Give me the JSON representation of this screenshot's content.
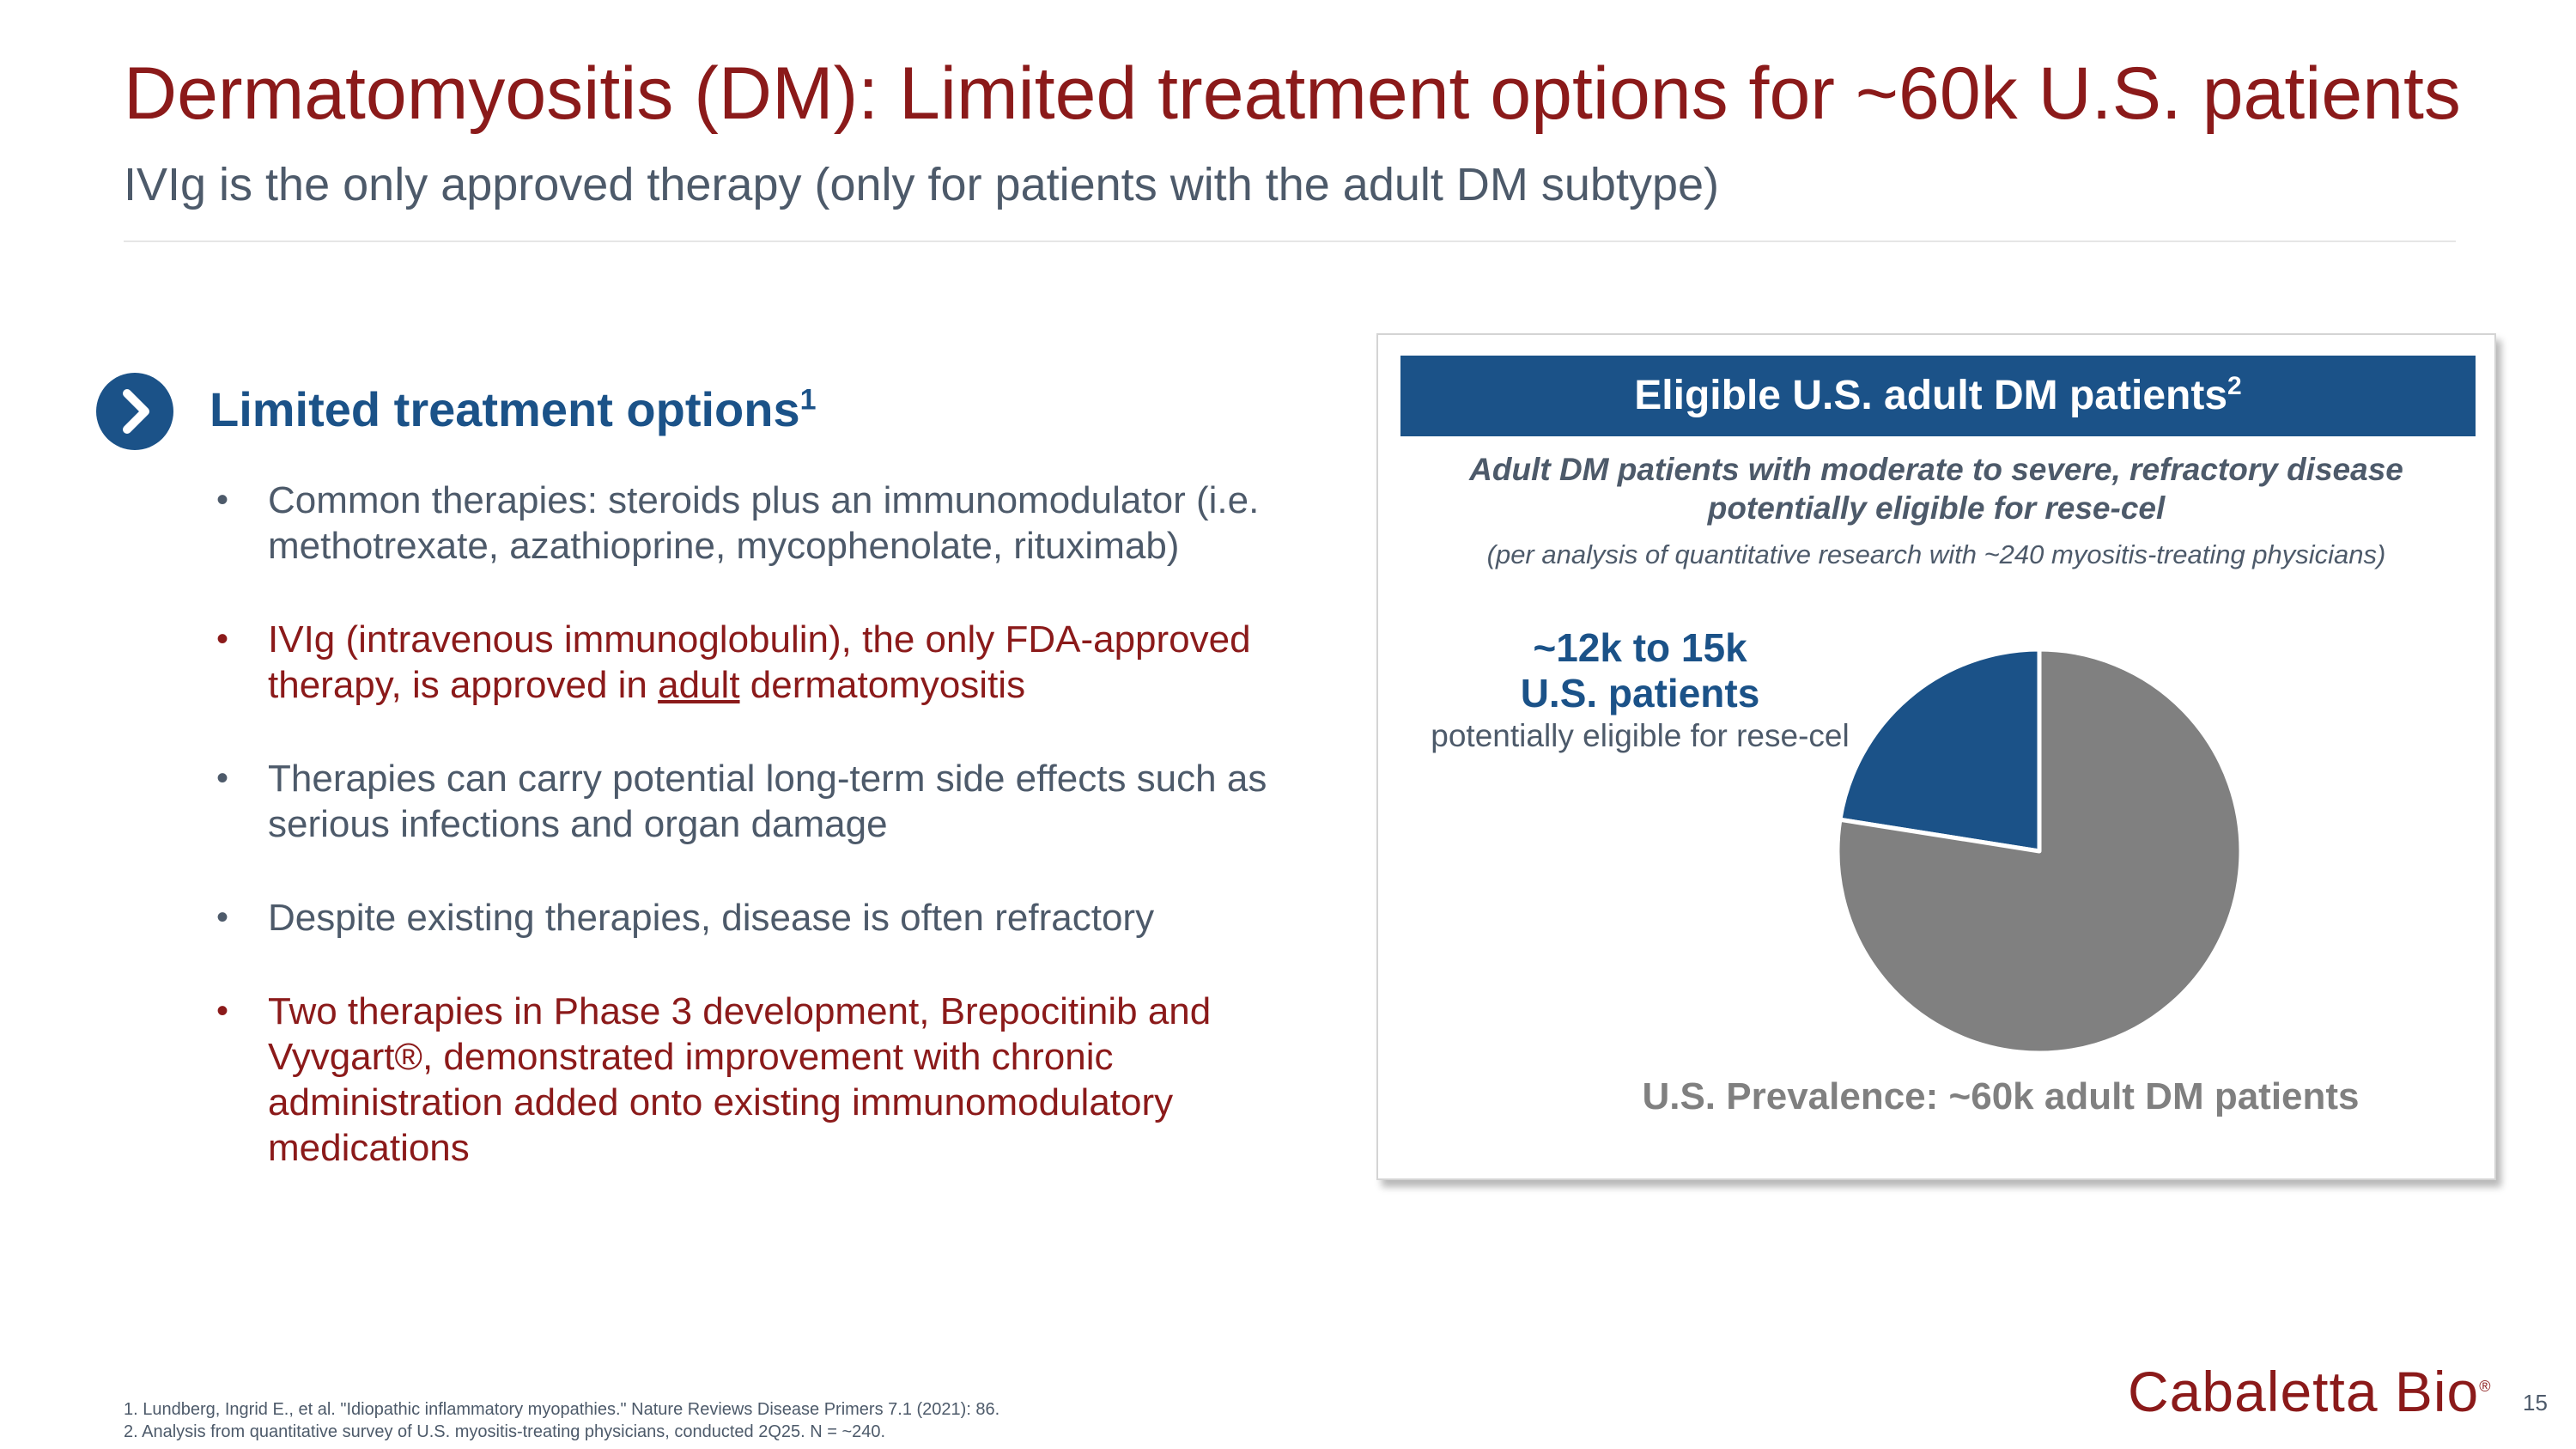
{
  "slide": {
    "title": "Dermatomyositis (DM): Limited treatment options for ~60k U.S. patients",
    "subtitle": "IVIg is the only approved therapy (only for patients with the adult DM subtype)",
    "page_number": "15"
  },
  "left": {
    "heading": "Limited treatment options",
    "heading_sup": "1",
    "icon": "chevron-right-circle-icon",
    "bullets": [
      {
        "text": "Common therapies: steroids plus an immunomodulator (i.e. methotrexate, azathioprine, mycophenolate, rituximab)",
        "color": "#4d5a6a"
      },
      {
        "text_before": "IVIg (intravenous immunoglobulin), the only FDA-approved therapy, is approved in ",
        "underlined": "adult",
        "text_after": " dermatomyositis",
        "color": "#8b1a1a"
      },
      {
        "text": "Therapies can carry potential long-term side effects such as serious infections and organ damage",
        "color": "#4d5a6a"
      },
      {
        "text": "Despite existing therapies, disease is often refractory",
        "color": "#4d5a6a"
      },
      {
        "text": "Two therapies in Phase 3 development, Brepocitinib and Vyvgart®, demonstrated improvement with chronic administration added onto existing immunomodulatory medications",
        "color": "#8b1a1a"
      }
    ]
  },
  "panel": {
    "header": "Eligible U.S. adult DM patients",
    "header_sup": "2",
    "description": "Adult DM patients with moderate to severe, refractory disease potentially eligible for rese-cel",
    "note": "(per analysis of quantitative research with ~240 myositis-treating physicians)",
    "callout_line1": "~12k to 15k",
    "callout_line2": "U.S. patients",
    "callout_sub": "potentially eligible for rese-cel",
    "prevalence_label": "U.S. Prevalence: ~60k adult DM patients"
  },
  "chart_data": {
    "type": "pie",
    "slices": [
      {
        "value": 22.5,
        "color": "#1b5288"
      },
      {
        "value": 77.5,
        "color": "#808080"
      }
    ]
  },
  "footnotes": [
    "1.  Lundberg, Ingrid E., et al. \"Idiopathic inflammatory myopathies.\" Nature Reviews Disease Primers 7.1 (2021): 86.",
    "2.  Analysis from quantitative survey of U.S. myositis-treating physicians, conducted 2Q25. N = ~240."
  ],
  "logo": {
    "text": "Cabaletta Bio",
    "mark": "®"
  },
  "colors": {
    "brand_red": "#8b1a1a",
    "brand_blue": "#1b5288",
    "text_gray": "#4d5a6a"
  }
}
